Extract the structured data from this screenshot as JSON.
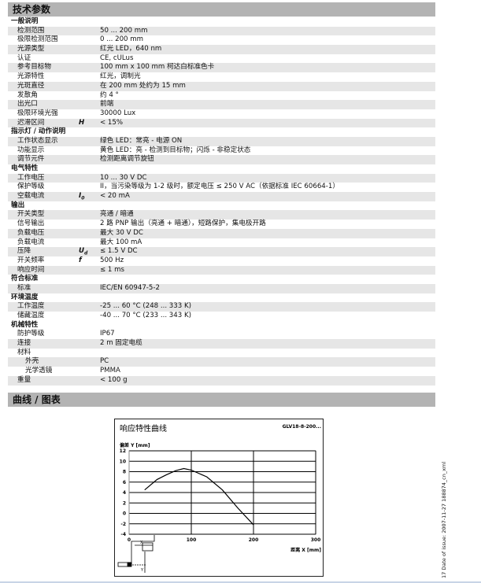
{
  "header": {
    "title": "技术参数"
  },
  "sections": [
    {
      "title": "一般说明",
      "rows": [
        {
          "label": "检测范围",
          "value": "50 ... 200 mm"
        },
        {
          "label": "极限检测范围",
          "value": "0 ... 200 mm"
        },
        {
          "label": "光源类型",
          "value": "红光 LED，640 nm"
        },
        {
          "label": "认证",
          "value": "CE, cULus"
        },
        {
          "label": "参考目标物",
          "value": "100 mm x 100 mm 柯达白标准色卡"
        },
        {
          "label": "光源特性",
          "value": "红光，调制光"
        },
        {
          "label": "光斑直径",
          "value": "在 200 mm 处约为 15 mm"
        },
        {
          "label": "发散角",
          "value": "约 4 °"
        },
        {
          "label": "出光口",
          "value": "前端"
        },
        {
          "label": "极限环境光强",
          "value": "30000 Lux"
        },
        {
          "label": "迟滞区间",
          "symbol": "H",
          "value": "< 15%"
        }
      ]
    },
    {
      "title": "指示灯 / 动作说明",
      "rows": [
        {
          "label": "工作状态显示",
          "value": "绿色 LED：常亮 - 电源 ON"
        },
        {
          "label": "功能显示",
          "value": "黄色 LED：亮 - 检测到目标物；闪烁 - 非稳定状态"
        },
        {
          "label": "调节元件",
          "value": "检测距离调节旋钮"
        }
      ]
    },
    {
      "title": "电气特性",
      "rows": [
        {
          "label": "工作电压",
          "value": "10 ... 30 V DC"
        },
        {
          "label": "保护等级",
          "value": "II，当污染等级为 1-2 级时，额定电压 ≤ 250 V AC（依据标准 IEC 60664-1）"
        },
        {
          "label": "空载电流",
          "symbol": "I0",
          "value": "< 20 mA"
        }
      ]
    },
    {
      "title": "输出",
      "rows": [
        {
          "label": "开关类型",
          "value": "亮通 / 暗通"
        },
        {
          "label": "信号输出",
          "value": "2 路 PNP 输出（亮通 + 暗通），短路保护，集电极开路"
        },
        {
          "label": "负载电压",
          "value": "最大 30 V DC"
        },
        {
          "label": "负载电流",
          "value": "最大 100 mA"
        },
        {
          "label": "压降",
          "symbol": "Ud",
          "value": "≤ 1.5 V DC"
        },
        {
          "label": "开关频率",
          "symbol": "f",
          "value": "500 Hz"
        },
        {
          "label": "响应时间",
          "value": "≤ 1 ms"
        }
      ]
    },
    {
      "title": "符合标准",
      "rows": [
        {
          "label": "标准",
          "value": "IEC/EN 60947-5-2"
        }
      ]
    },
    {
      "title": "环境温度",
      "rows": [
        {
          "label": "工作温度",
          "value": "-25 ... 60 °C (248 ... 333 K)"
        },
        {
          "label": "储藏温度",
          "value": "-40 ... 70 °C (233 ... 343 K)"
        }
      ]
    },
    {
      "title": "机械特性",
      "rows": [
        {
          "label": "防护等级",
          "value": "IP67"
        },
        {
          "label": "连接",
          "value": "2 m 固定电缆"
        },
        {
          "label": "材料",
          "value": ""
        },
        {
          "label": "外壳",
          "value": "PC",
          "indent": 2
        },
        {
          "label": "光学透镜",
          "value": "PMMA",
          "indent": 2
        },
        {
          "label": "重量",
          "value": "< 100 g"
        }
      ]
    }
  ],
  "curves_header": {
    "title": "曲线 / 图表"
  },
  "chart_data": {
    "type": "line",
    "title": "响应特性曲线",
    "model": "GLV18-8-200...",
    "xlabel": "距离 X [mm]",
    "ylabel": "偏差 Y [mm]",
    "xlim": [
      0,
      300
    ],
    "ylim": [
      -4,
      12
    ],
    "xticks": [
      0,
      100,
      200,
      300
    ],
    "yticks": [
      12,
      10,
      8,
      6,
      4,
      2,
      0,
      -2,
      -4
    ],
    "grid": true,
    "x": [
      25,
      45,
      60,
      75,
      88,
      100,
      125,
      150,
      175,
      200
    ],
    "y": [
      4.5,
      6.5,
      7.4,
      8.2,
      8.6,
      8.3,
      7.0,
      4.5,
      1.0,
      -2.2
    ],
    "diagram_labels": {
      "x": "X",
      "y": "Y"
    }
  },
  "side_text": "17   Date of issue: 2007-11-27   188874_cn_xml"
}
